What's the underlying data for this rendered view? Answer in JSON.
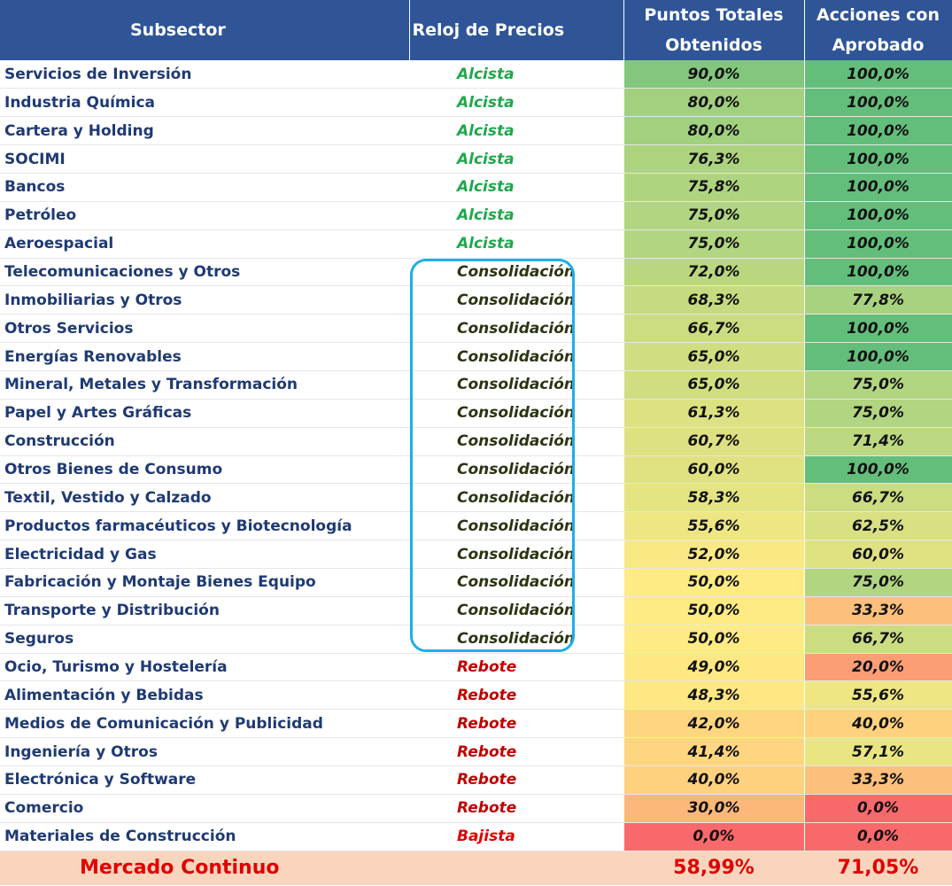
{
  "header": {
    "subsector": "Subsector",
    "reloj": "Reloj de Precios",
    "puntos": "Puntos Totales Obtenidos",
    "acciones": "Acciones con Aprobado"
  },
  "signal_colors": {
    "Alcista": "#1ea84b",
    "Consolidación": "#2b3512",
    "Rebote": "#c00000",
    "Bajista": "#e00000"
  },
  "rows": [
    {
      "subsector": "Servicios de Inversión",
      "reloj": "Alcista",
      "puntos": 90.0,
      "acciones": 100.0
    },
    {
      "subsector": "Industria Química",
      "reloj": "Alcista",
      "puntos": 80.0,
      "acciones": 100.0
    },
    {
      "subsector": "Cartera y Holding",
      "reloj": "Alcista",
      "puntos": 80.0,
      "acciones": 100.0
    },
    {
      "subsector": "SOCIMI",
      "reloj": "Alcista",
      "puntos": 76.3,
      "acciones": 100.0
    },
    {
      "subsector": "Bancos",
      "reloj": "Alcista",
      "puntos": 75.8,
      "acciones": 100.0
    },
    {
      "subsector": "Petróleo",
      "reloj": "Alcista",
      "puntos": 75.0,
      "acciones": 100.0
    },
    {
      "subsector": "Aeroespacial",
      "reloj": "Alcista",
      "puntos": 75.0,
      "acciones": 100.0
    },
    {
      "subsector": "Telecomunicaciones y Otros",
      "reloj": "Consolidación",
      "puntos": 72.0,
      "acciones": 100.0
    },
    {
      "subsector": "Inmobiliarias y Otros",
      "reloj": "Consolidación",
      "puntos": 68.3,
      "acciones": 77.8
    },
    {
      "subsector": "Otros Servicios",
      "reloj": "Consolidación",
      "puntos": 66.7,
      "acciones": 100.0
    },
    {
      "subsector": "Energías Renovables",
      "reloj": "Consolidación",
      "puntos": 65.0,
      "acciones": 100.0
    },
    {
      "subsector": "Mineral, Metales y Transformación",
      "reloj": "Consolidación",
      "puntos": 65.0,
      "acciones": 75.0
    },
    {
      "subsector": "Papel y Artes Gráficas",
      "reloj": "Consolidación",
      "puntos": 61.3,
      "acciones": 75.0
    },
    {
      "subsector": "Construcción",
      "reloj": "Consolidación",
      "puntos": 60.7,
      "acciones": 71.4
    },
    {
      "subsector": "Otros Bienes de Consumo",
      "reloj": "Consolidación",
      "puntos": 60.0,
      "acciones": 100.0
    },
    {
      "subsector": "Textil, Vestido y Calzado",
      "reloj": "Consolidación",
      "puntos": 58.3,
      "acciones": 66.7
    },
    {
      "subsector": "Productos farmacéuticos y Biotecnología",
      "reloj": "Consolidación",
      "puntos": 55.6,
      "acciones": 62.5
    },
    {
      "subsector": "Electricidad y Gas",
      "reloj": "Consolidación",
      "puntos": 52.0,
      "acciones": 60.0
    },
    {
      "subsector": "Fabricación y Montaje Bienes Equipo",
      "reloj": "Consolidación",
      "puntos": 50.0,
      "acciones": 75.0
    },
    {
      "subsector": "Transporte y Distribución",
      "reloj": "Consolidación",
      "puntos": 50.0,
      "acciones": 33.3
    },
    {
      "subsector": "Seguros",
      "reloj": "Consolidación",
      "puntos": 50.0,
      "acciones": 66.7
    },
    {
      "subsector": "Ocio, Turismo y Hostelería",
      "reloj": "Rebote",
      "puntos": 49.0,
      "acciones": 20.0
    },
    {
      "subsector": "Alimentación y Bebidas",
      "reloj": "Rebote",
      "puntos": 48.3,
      "acciones": 55.6
    },
    {
      "subsector": "Medios de Comunicación y Publicidad",
      "reloj": "Rebote",
      "puntos": 42.0,
      "acciones": 40.0
    },
    {
      "subsector": "Ingeniería y Otros",
      "reloj": "Rebote",
      "puntos": 41.4,
      "acciones": 57.1
    },
    {
      "subsector": "Electrónica y Software",
      "reloj": "Rebote",
      "puntos": 40.0,
      "acciones": 33.3
    },
    {
      "subsector": "Comercio",
      "reloj": "Rebote",
      "puntos": 30.0,
      "acciones": 0.0
    },
    {
      "subsector": "Materiales de Construcción",
      "reloj": "Bajista",
      "puntos": 0.0,
      "acciones": 0.0
    }
  ],
  "total": {
    "label": "Mercado Continuo",
    "puntos": "58,99%",
    "acciones": "71,05%"
  }
}
